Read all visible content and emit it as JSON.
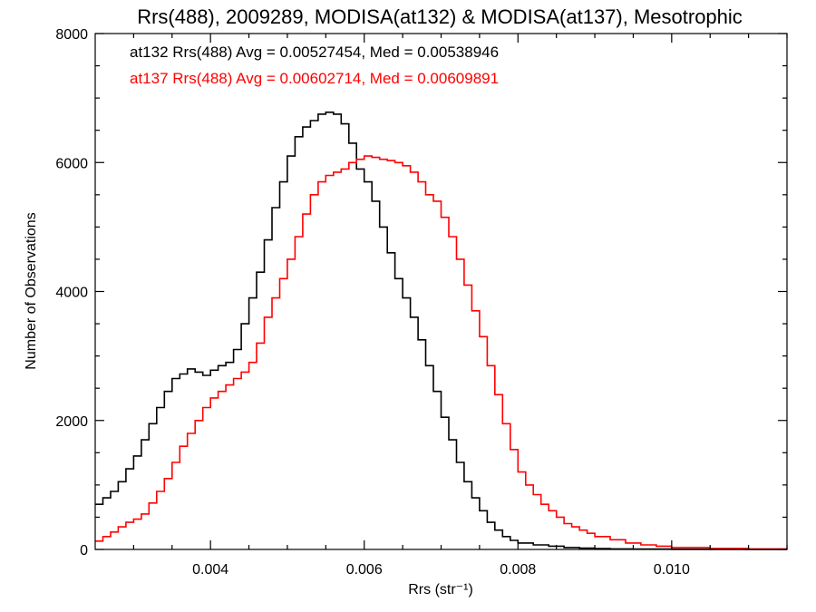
{
  "chart_data": {
    "type": "line",
    "title": "Rrs(488), 2009289, MODISA(at132) & MODISA(at137), Mesotrophic",
    "xlabel": "Rrs (str⁻¹)",
    "ylabel": "Number of Observations",
    "xlim": [
      0.0025,
      0.0115
    ],
    "ylim": [
      0,
      8000
    ],
    "x_ticks": [
      0.004,
      0.006,
      0.008,
      0.01
    ],
    "x_tick_labels": [
      "0.004",
      "0.006",
      "0.008",
      "0.010"
    ],
    "y_ticks": [
      0,
      2000,
      4000,
      6000,
      8000
    ],
    "y_tick_labels": [
      "0",
      "2000",
      "4000",
      "6000",
      "8000"
    ],
    "grid": false,
    "step_style": "histogram",
    "annotations": [
      {
        "text": "at132 Rrs(488) Avg = 0.00527454, Med = 0.00538946",
        "color": "#000000"
      },
      {
        "text": "at137 Rrs(488) Avg = 0.00602714, Med = 0.00609891",
        "color": "#ff0000"
      }
    ],
    "series": [
      {
        "color": "#000000",
        "x": [
          0.0025,
          0.0026,
          0.0027,
          0.0028,
          0.0029,
          0.003,
          0.0031,
          0.0032,
          0.0033,
          0.0034,
          0.0035,
          0.0036,
          0.0037,
          0.0038,
          0.0039,
          0.004,
          0.0041,
          0.0042,
          0.0043,
          0.0044,
          0.0045,
          0.0046,
          0.0047,
          0.0048,
          0.0049,
          0.005,
          0.0051,
          0.0052,
          0.0053,
          0.0054,
          0.0055,
          0.0056,
          0.0057,
          0.0058,
          0.0059,
          0.006,
          0.0061,
          0.0062,
          0.0063,
          0.0064,
          0.0065,
          0.0066,
          0.0067,
          0.0068,
          0.0069,
          0.007,
          0.0071,
          0.0072,
          0.0073,
          0.0074,
          0.0075,
          0.0076,
          0.0077,
          0.0078,
          0.0079,
          0.008,
          0.0082,
          0.0084,
          0.0086,
          0.0088,
          0.009,
          0.0092,
          0.0095,
          0.01,
          0.0105,
          0.011,
          0.0115
        ],
        "y": [
          700,
          800,
          900,
          1050,
          1250,
          1450,
          1700,
          1950,
          2200,
          2450,
          2650,
          2720,
          2800,
          2750,
          2700,
          2780,
          2850,
          2900,
          3100,
          3500,
          3900,
          4300,
          4800,
          5300,
          5700,
          6100,
          6400,
          6550,
          6650,
          6750,
          6780,
          6750,
          6600,
          6300,
          5900,
          5700,
          5400,
          5000,
          4600,
          4200,
          3900,
          3600,
          3250,
          2850,
          2450,
          2050,
          1700,
          1350,
          1050,
          800,
          600,
          420,
          300,
          200,
          140,
          100,
          70,
          50,
          30,
          20,
          12,
          8,
          5,
          3,
          1,
          0,
          0
        ]
      },
      {
        "color": "#ff0000",
        "x": [
          0.0025,
          0.0026,
          0.0027,
          0.0028,
          0.0029,
          0.003,
          0.0031,
          0.0032,
          0.0033,
          0.0034,
          0.0035,
          0.0036,
          0.0037,
          0.0038,
          0.0039,
          0.004,
          0.0041,
          0.0042,
          0.0043,
          0.0044,
          0.0045,
          0.0046,
          0.0047,
          0.0048,
          0.0049,
          0.005,
          0.0051,
          0.0052,
          0.0053,
          0.0054,
          0.0055,
          0.0056,
          0.0057,
          0.0058,
          0.0059,
          0.006,
          0.0061,
          0.0062,
          0.0063,
          0.0064,
          0.0065,
          0.0066,
          0.0067,
          0.0068,
          0.0069,
          0.007,
          0.0071,
          0.0072,
          0.0073,
          0.0074,
          0.0075,
          0.0076,
          0.0077,
          0.0078,
          0.0079,
          0.008,
          0.0081,
          0.0082,
          0.0083,
          0.0084,
          0.0085,
          0.0086,
          0.0087,
          0.0088,
          0.0089,
          0.009,
          0.0092,
          0.0094,
          0.0096,
          0.0098,
          0.01,
          0.0105,
          0.011,
          0.0115
        ],
        "y": [
          130,
          200,
          270,
          350,
          420,
          470,
          550,
          720,
          900,
          1100,
          1350,
          1600,
          1800,
          2000,
          2200,
          2350,
          2450,
          2550,
          2650,
          2750,
          2900,
          3200,
          3600,
          3900,
          4200,
          4500,
          4850,
          5200,
          5500,
          5700,
          5800,
          5850,
          5900,
          6000,
          6050,
          6100,
          6080,
          6050,
          6030,
          6000,
          5950,
          5850,
          5700,
          5500,
          5400,
          5150,
          4850,
          4500,
          4100,
          3700,
          3300,
          2850,
          2400,
          1950,
          1550,
          1200,
          1000,
          850,
          700,
          600,
          500,
          400,
          350,
          300,
          250,
          200,
          150,
          100,
          70,
          50,
          30,
          15,
          8,
          3
        ]
      }
    ]
  }
}
